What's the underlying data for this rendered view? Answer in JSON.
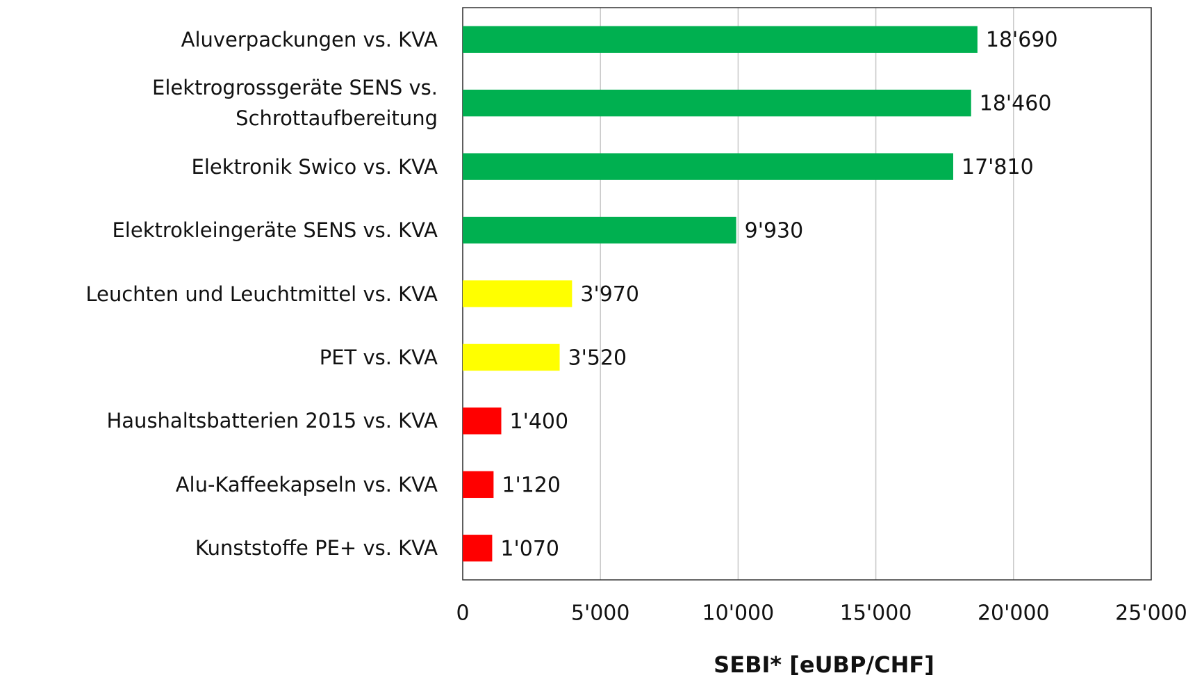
{
  "chart_data": {
    "type": "barh",
    "xlabel": "SEBI* [eUBP/CHF]",
    "categories": [
      "Aluverpackungen vs. KVA",
      "Elektrogrossgeräte SENS vs. Schrottaufbereitung",
      "Elektronik Swico vs. KVA",
      "Elektrokleingeräte SENS vs. KVA",
      "Leuchten und Leuchtmittel vs. KVA",
      "PET vs. KVA",
      "Haushaltsbatterien 2015 vs. KVA",
      "Alu-Kaffeekapseln vs. KVA",
      "Kunststoffe PE+ vs. KVA"
    ],
    "values": [
      18690,
      18460,
      17810,
      9930,
      3970,
      3520,
      1400,
      1120,
      1070
    ],
    "value_labels": [
      "18'690",
      "18'460",
      "17'810",
      "9'930",
      "3'970",
      "3'520",
      "1'400",
      "1'120",
      "1'070"
    ],
    "colors": [
      "#00b050",
      "#00b050",
      "#00b050",
      "#00b050",
      "#ffff00",
      "#ffff00",
      "#ff0000",
      "#ff0000",
      "#ff0000"
    ],
    "xlim": [
      0,
      25000
    ],
    "xticks": [
      0,
      {
        "value": 5000,
        "label": "5'000"
      },
      {
        "value": 10000,
        "label": "10'000"
      },
      {
        "value": 15000,
        "label": "15'000"
      },
      {
        "value": 20000,
        "label": "20'000"
      },
      {
        "value": 25000,
        "label": "25'000"
      }
    ],
    "grid": true
  }
}
